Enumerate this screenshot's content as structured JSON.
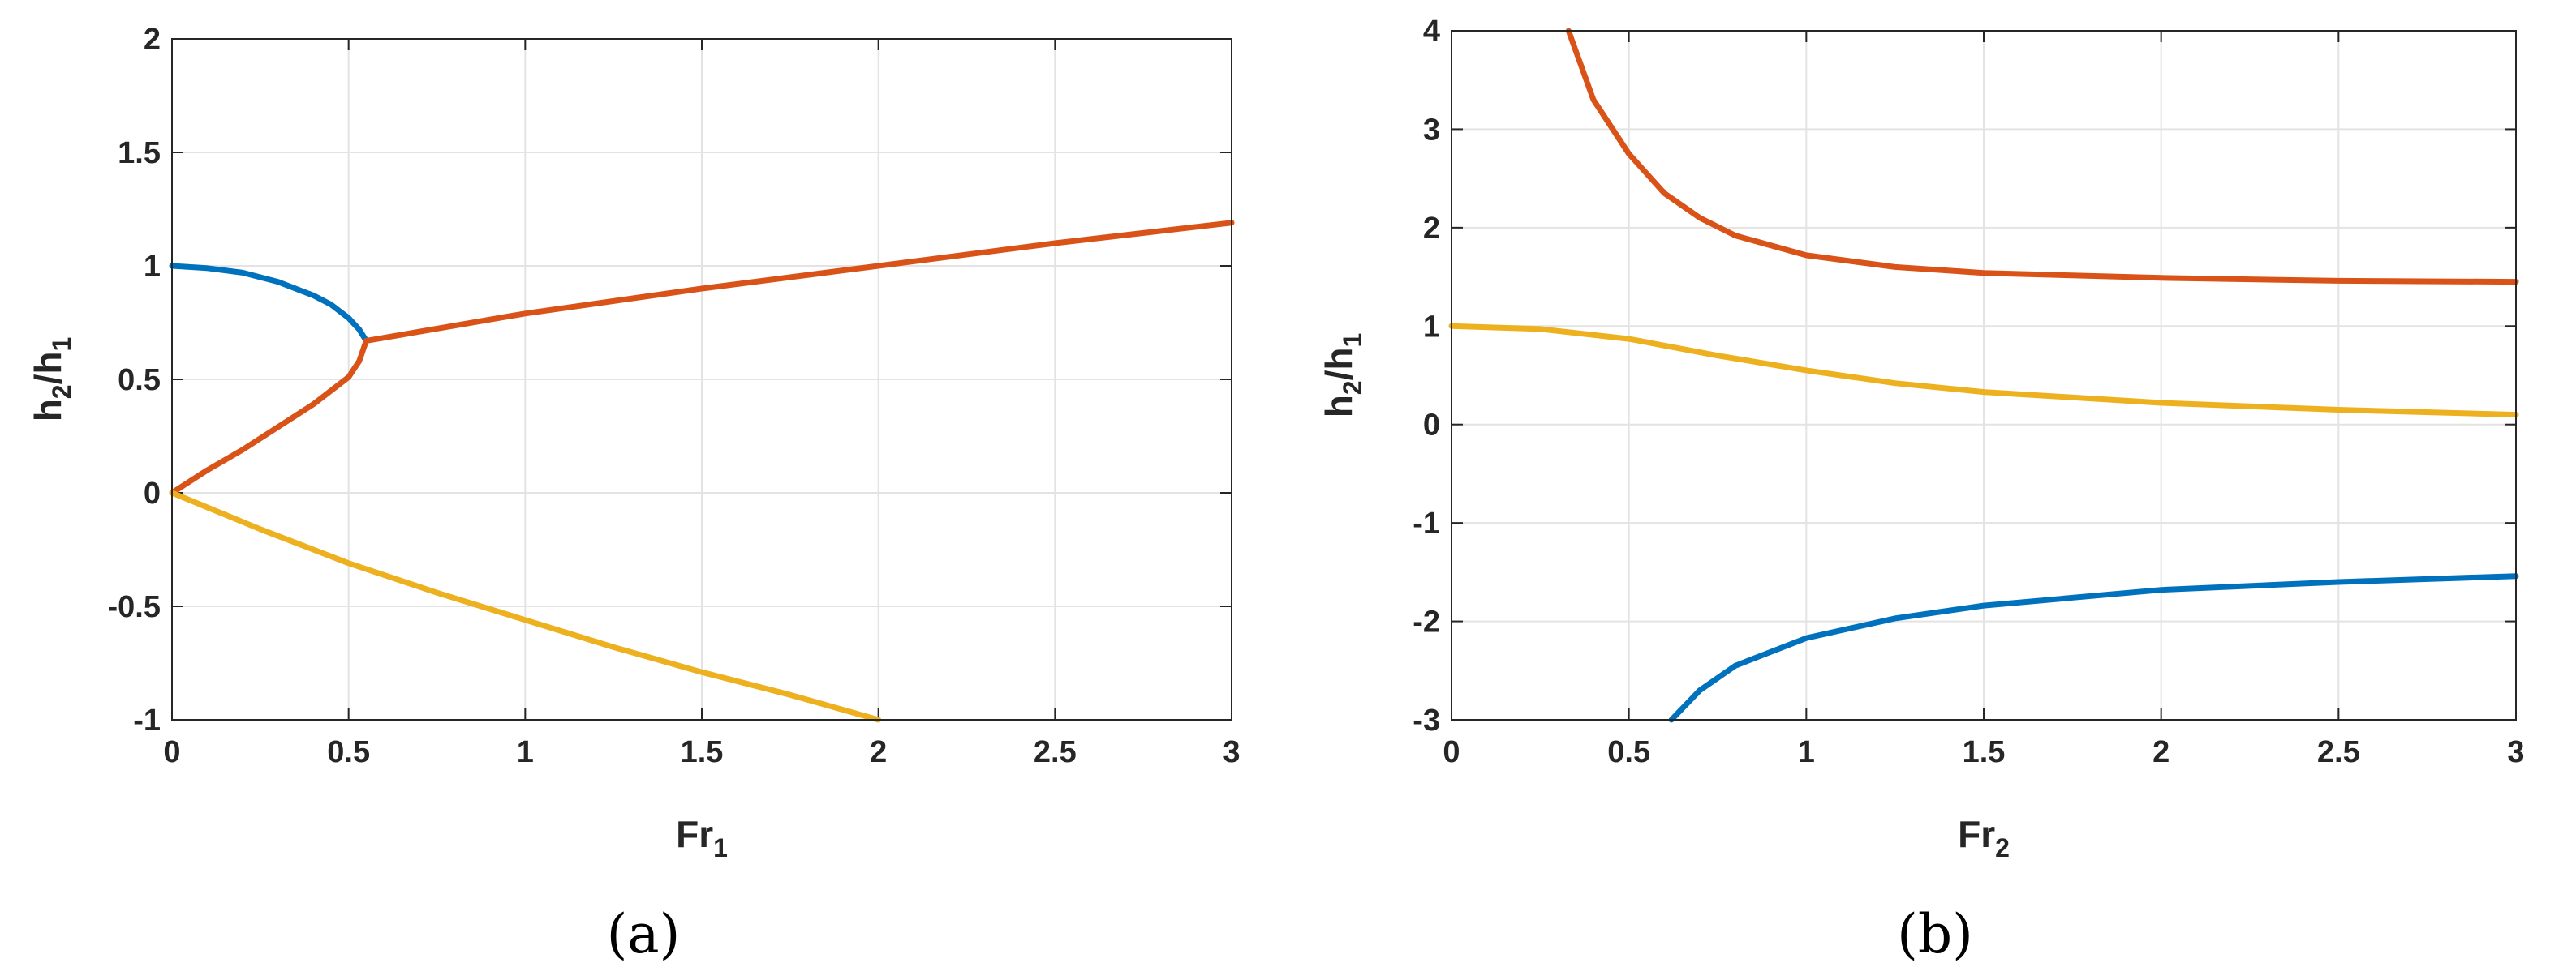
{
  "chart_data": [
    {
      "type": "line",
      "panel": "(a)",
      "xlabel": "Fr",
      "xlabel_sub": "1",
      "ylabel_parts": {
        "h": "h",
        "sub2": "2",
        "slash": "/h",
        "sub1": "1"
      },
      "xlim": [
        0,
        3
      ],
      "ylim": [
        -1,
        2
      ],
      "xticks": [
        0,
        0.5,
        1,
        1.5,
        2,
        2.5,
        3
      ],
      "xtick_labels": [
        "0",
        "0.5",
        "1",
        "1.5",
        "2",
        "2.5",
        "3"
      ],
      "yticks": [
        -1,
        -0.5,
        0,
        0.5,
        1,
        1.5,
        2
      ],
      "ytick_labels": [
        "-1",
        "-0.5",
        "0",
        "0.5",
        "1",
        "1.5",
        "2"
      ],
      "grid": true,
      "series": [
        {
          "color": "#0072BD",
          "x": [
            0,
            0.1,
            0.2,
            0.3,
            0.4,
            0.45,
            0.5,
            0.53,
            0.55
          ],
          "y": [
            1.0,
            0.99,
            0.97,
            0.93,
            0.87,
            0.83,
            0.77,
            0.72,
            0.67
          ]
        },
        {
          "color": "#D95319",
          "x": [
            0,
            0.1,
            0.2,
            0.3,
            0.4,
            0.5,
            0.53,
            0.55,
            1,
            1.5,
            2,
            2.5,
            3
          ],
          "y": [
            0.0,
            0.1,
            0.19,
            0.29,
            0.39,
            0.51,
            0.58,
            0.67,
            0.79,
            0.9,
            1.0,
            1.1,
            1.19
          ]
        },
        {
          "color": "#EDB120",
          "x": [
            0,
            0.25,
            0.5,
            0.75,
            1,
            1.25,
            1.5,
            1.75,
            2
          ],
          "y": [
            0.0,
            -0.16,
            -0.31,
            -0.44,
            -0.56,
            -0.68,
            -0.79,
            -0.89,
            -1.0
          ]
        }
      ]
    },
    {
      "type": "line",
      "panel": "(b)",
      "xlabel": "Fr",
      "xlabel_sub": "2",
      "ylabel_parts": {
        "h": "h",
        "sub2": "2",
        "slash": "/h",
        "sub1": "1"
      },
      "xlim": [
        0,
        3
      ],
      "ylim": [
        -3,
        4
      ],
      "xticks": [
        0,
        0.5,
        1,
        1.5,
        2,
        2.5,
        3
      ],
      "xtick_labels": [
        "0",
        "0.5",
        "1",
        "1.5",
        "2",
        "2.5",
        "3"
      ],
      "yticks": [
        -3,
        -2,
        -1,
        0,
        1,
        2,
        3,
        4
      ],
      "ytick_labels": [
        "-3",
        "-2",
        "-1",
        "0",
        "1",
        "2",
        "3",
        "4"
      ],
      "grid": true,
      "series": [
        {
          "color": "#D95319",
          "x": [
            0.33,
            0.4,
            0.5,
            0.6,
            0.7,
            0.8,
            1,
            1.25,
            1.5,
            2,
            2.5,
            3
          ],
          "y": [
            4.0,
            3.3,
            2.75,
            2.35,
            2.1,
            1.92,
            1.72,
            1.6,
            1.54,
            1.49,
            1.46,
            1.45
          ]
        },
        {
          "color": "#EDB120",
          "x": [
            0,
            0.25,
            0.5,
            0.75,
            1,
            1.25,
            1.5,
            2,
            2.5,
            3
          ],
          "y": [
            1.0,
            0.97,
            0.87,
            0.7,
            0.55,
            0.42,
            0.33,
            0.22,
            0.15,
            0.1
          ]
        },
        {
          "color": "#0072BD",
          "x": [
            0.62,
            0.7,
            0.8,
            1,
            1.25,
            1.5,
            2,
            2.5,
            3
          ],
          "y": [
            -3.0,
            -2.7,
            -2.45,
            -2.17,
            -1.97,
            -1.84,
            -1.68,
            -1.6,
            -1.54
          ]
        }
      ]
    }
  ]
}
